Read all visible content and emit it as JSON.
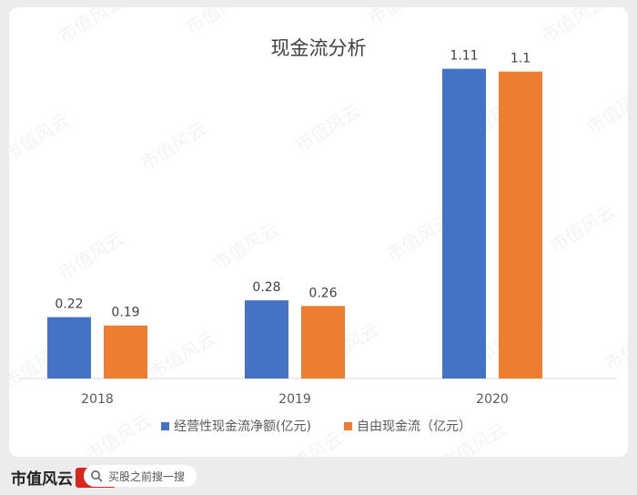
{
  "chart_data": {
    "type": "bar",
    "title": "现金流分析",
    "categories": [
      "2018",
      "2019",
      "2020"
    ],
    "series": [
      {
        "name": "经营性现金流净额(亿元)",
        "values": [
          0.22,
          0.28,
          1.11
        ],
        "color": "#4472c4"
      },
      {
        "name": "自由现金流（亿元）",
        "values": [
          0.19,
          0.26,
          1.1
        ],
        "color": "#ed7d31"
      }
    ],
    "data_labels": [
      [
        "0.22",
        "0.28",
        "1.11"
      ],
      [
        "0.19",
        "0.26",
        "1.1"
      ]
    ],
    "ylim": [
      0,
      1.2
    ],
    "grid": false,
    "legend": "bottom"
  },
  "watermark": {
    "text": "市值风云"
  },
  "footer": {
    "brand": "市值风云",
    "search_icon": "search-icon",
    "search_text": "买股之前搜一搜"
  }
}
